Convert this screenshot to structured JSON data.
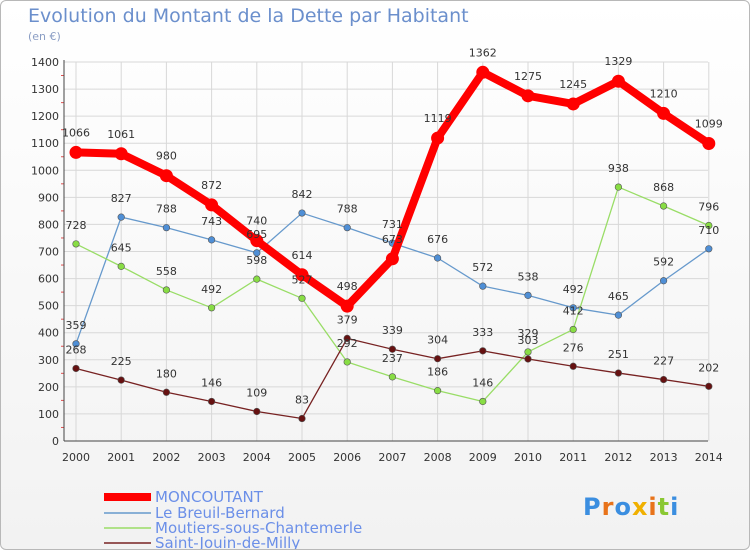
{
  "title": "Evolution du Montant de la Dette par Habitant",
  "unit_label": "(en €)",
  "logo_text": "Proxiti",
  "chart_data": {
    "type": "line",
    "title": "Evolution du Montant de la Dette par Habitant",
    "ylabel": "(en €)",
    "xlabel": "",
    "ylim": [
      0,
      1400
    ],
    "yticks": [
      0,
      100,
      200,
      300,
      400,
      500,
      600,
      700,
      800,
      900,
      1000,
      1100,
      1200,
      1300,
      1400
    ],
    "grid": true,
    "legend_position": "bottom-left",
    "x": [
      "2000",
      "2001",
      "2002",
      "2003",
      "2004",
      "2005",
      "2006",
      "2007",
      "2008",
      "2009",
      "2010",
      "2011",
      "2012",
      "2013",
      "2014"
    ],
    "series": [
      {
        "name": "MONCOUTANT",
        "color": "#ff0000",
        "values": [
          1066,
          1061,
          980,
          872,
          740,
          614,
          498,
          673,
          1119,
          1362,
          1275,
          1245,
          1329,
          1210,
          1099
        ]
      },
      {
        "name": "Le Breuil-Bernard",
        "color": "#6699cc",
        "values": [
          359,
          827,
          788,
          743,
          695,
          842,
          788,
          731,
          676,
          572,
          538,
          492,
          465,
          592,
          710
        ]
      },
      {
        "name": "Moutiers-sous-Chantemerle",
        "color": "#99dd66",
        "values": [
          728,
          645,
          558,
          492,
          598,
          527,
          292,
          237,
          186,
          146,
          329,
          412,
          938,
          868,
          796
        ]
      },
      {
        "name": "Saint-Jouin-de-Milly",
        "color": "#772222",
        "values": [
          268,
          225,
          180,
          146,
          109,
          83,
          379,
          339,
          304,
          333,
          303,
          276,
          251,
          227,
          202
        ]
      }
    ],
    "data_labels": [
      [
        "1066",
        "1061",
        "980",
        "872",
        "740",
        "614",
        "498",
        "673",
        "1119",
        "1362",
        "1275",
        "1245",
        "1329",
        "1210",
        "1099"
      ],
      [
        "359",
        "827",
        "788",
        "743",
        "695",
        "842",
        "788",
        "731",
        "676",
        "572",
        "538",
        "492",
        "465",
        "592",
        "710"
      ],
      [
        "728",
        "645",
        "558",
        "492",
        "598",
        "527",
        "292",
        "237",
        "186",
        "146",
        "329",
        "412",
        "938",
        "868",
        "796"
      ],
      [
        "268",
        "225",
        "180",
        "146",
        "109",
        "83",
        "379",
        "339",
        "304",
        "333",
        "303",
        "276",
        "251",
        "227",
        "202"
      ]
    ]
  }
}
